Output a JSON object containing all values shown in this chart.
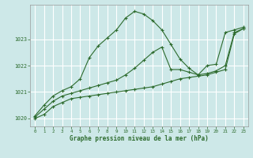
{
  "title": "Graphe pression niveau de la mer (hPa)",
  "bg_color": "#cde8e8",
  "grid_color": "#ffffff",
  "line_color": "#2d6b2d",
  "xlim": [
    -0.5,
    23.5
  ],
  "ylim": [
    1019.7,
    1024.3
  ],
  "yticks": [
    1020,
    1021,
    1022,
    1023
  ],
  "xticks": [
    0,
    1,
    2,
    3,
    4,
    5,
    6,
    7,
    8,
    9,
    10,
    11,
    12,
    13,
    14,
    15,
    16,
    17,
    18,
    19,
    20,
    21,
    22,
    23
  ],
  "series": [
    [
      1020.05,
      1020.35,
      1020.65,
      1020.85,
      1020.95,
      1021.05,
      1021.15,
      1021.25,
      1021.35,
      1021.45,
      1021.65,
      1021.9,
      1022.2,
      1022.5,
      1022.7,
      1021.85,
      1021.85,
      1021.75,
      1021.65,
      1021.7,
      1021.8,
      1022.0,
      1023.25,
      1023.4
    ],
    [
      1020.1,
      1020.5,
      1020.85,
      1021.05,
      1021.2,
      1021.5,
      1022.3,
      1022.75,
      1023.05,
      1023.35,
      1023.8,
      1024.05,
      1023.95,
      1023.7,
      1023.35,
      1022.8,
      1022.25,
      1021.9,
      1021.65,
      1022.0,
      1022.05,
      1023.25,
      1023.35,
      1023.45
    ],
    [
      1020.0,
      1020.15,
      1020.45,
      1020.6,
      1020.75,
      1020.8,
      1020.85,
      1020.9,
      1020.95,
      1021.0,
      1021.05,
      1021.1,
      1021.15,
      1021.2,
      1021.3,
      1021.4,
      1021.5,
      1021.55,
      1021.6,
      1021.65,
      1021.75,
      1021.85,
      1023.2,
      1023.4
    ]
  ]
}
